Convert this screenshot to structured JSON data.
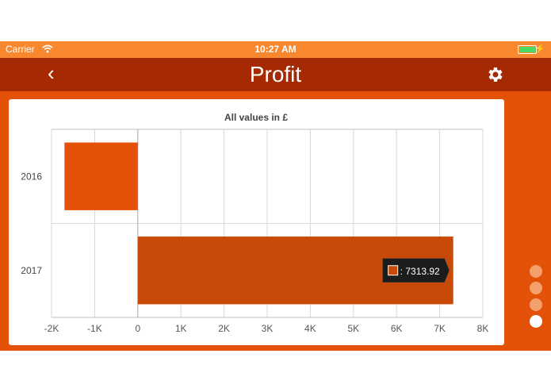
{
  "status_bar": {
    "carrier": "Carrier",
    "time": "10:27 AM"
  },
  "nav": {
    "title": "Profit"
  },
  "chart_data": {
    "type": "bar",
    "orientation": "horizontal",
    "title": "All values in £",
    "categories": [
      "2016",
      "2017"
    ],
    "values": [
      -1700,
      7313.92
    ],
    "xlim": [
      -2000,
      8000
    ],
    "xticks": [
      "-2K",
      "-1K",
      "0",
      "1K",
      "2K",
      "3K",
      "4K",
      "5K",
      "6K",
      "7K",
      "8K"
    ],
    "grid": true,
    "colors": [
      "#e35208",
      "#c94a08"
    ],
    "tooltip": {
      "text": ": 7313.92",
      "category": "2017"
    }
  },
  "pager": {
    "count": 4,
    "active": 4
  },
  "colors": {
    "status_bar": "#f7882f",
    "nav_bar": "#a52a04",
    "background": "#e35208"
  }
}
